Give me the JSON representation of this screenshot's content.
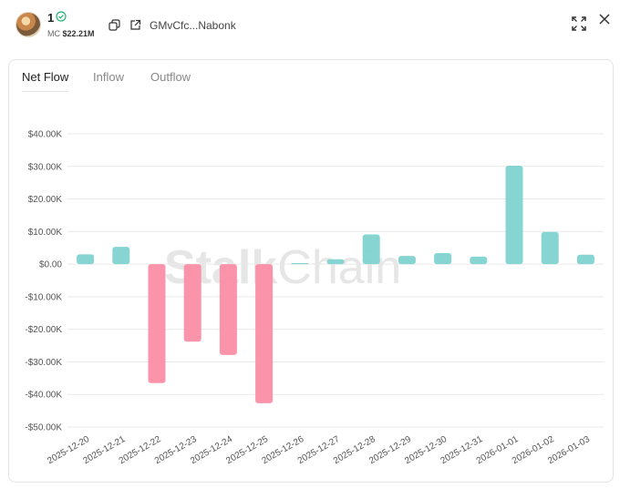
{
  "header": {
    "token_name": "1",
    "mc_label": "MC",
    "mc_value": "$22.21M",
    "address": "GMvCfc...Nabonk",
    "icons": [
      "verified-icon",
      "copy-icon",
      "external-link-icon",
      "fullscreen-icon",
      "close-icon"
    ]
  },
  "tabs": [
    {
      "label": "Net Flow",
      "active": true
    },
    {
      "label": "Inflow",
      "active": false
    },
    {
      "label": "Outflow",
      "active": false
    }
  ],
  "watermark": {
    "bold": "Stalk",
    "light": "Chain"
  },
  "colors": {
    "positive": "#7fd3d1",
    "negative": "#fb8ea6",
    "accent_check": "#22b573"
  },
  "chart_data": {
    "type": "bar",
    "categories": [
      "2025-12-20",
      "2025-12-21",
      "2025-12-22",
      "2025-12-23",
      "2025-12-24",
      "2025-12-25",
      "2025-12-26",
      "2025-12-27",
      "2025-12-28",
      "2025-12-29",
      "2025-12-30",
      "2025-12-31",
      "2026-01-01",
      "2026-01-02",
      "2026-01-03"
    ],
    "values": [
      3000,
      5300,
      -36500,
      -23800,
      -27900,
      -42700,
      300,
      1500,
      9100,
      2500,
      3400,
      2300,
      30200,
      9900,
      2900
    ],
    "yticks": [
      40000,
      30000,
      20000,
      10000,
      0,
      -10000,
      -20000,
      -30000,
      -40000,
      -50000
    ],
    "ytick_labels": [
      "$40.00K",
      "$30.00K",
      "$20.00K",
      "$10.00K",
      "$0.00",
      "-$10.00K",
      "-$20.00K",
      "-$30.00K",
      "-$40.00K",
      "-$50.00K"
    ],
    "ylim": [
      -50000,
      40000
    ],
    "grid": true,
    "title": "",
    "xlabel": "",
    "ylabel": ""
  }
}
